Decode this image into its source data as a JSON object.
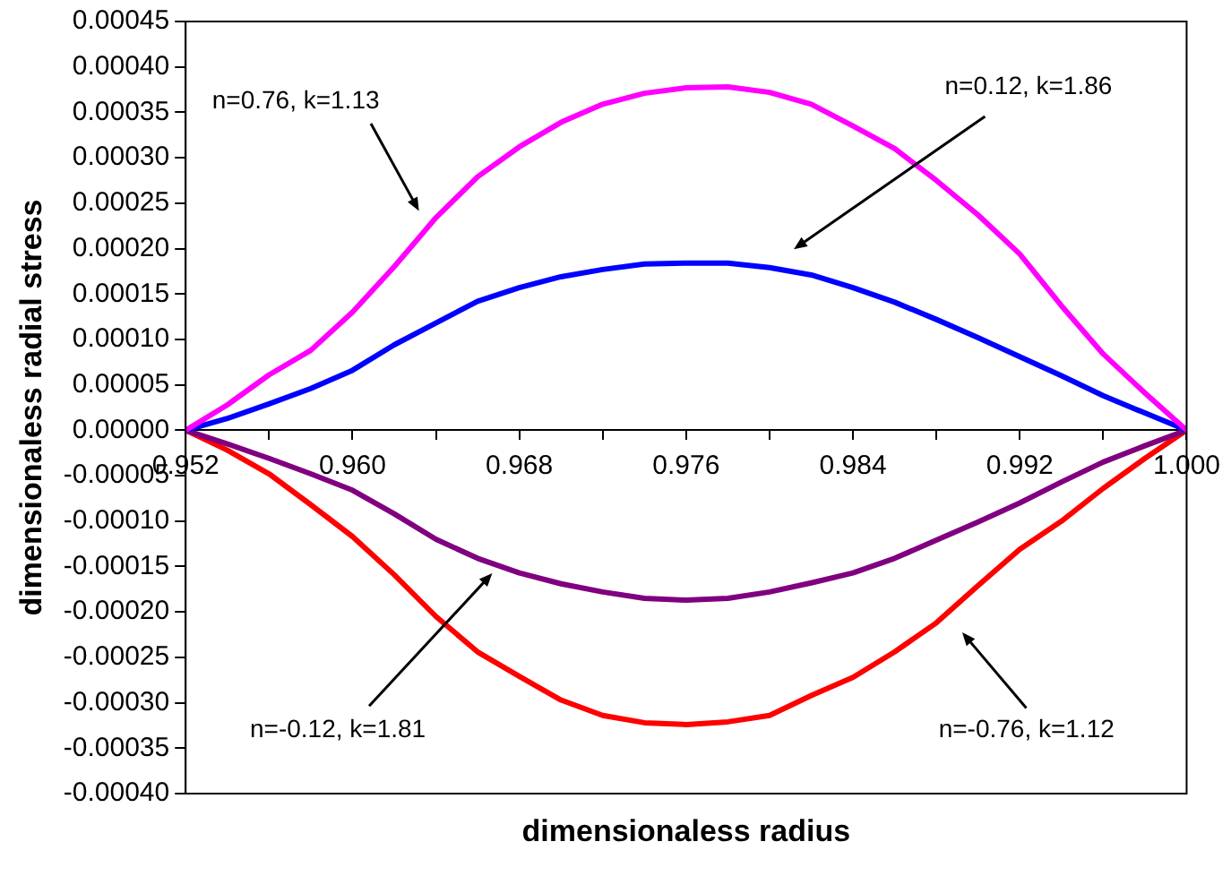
{
  "chart_data": {
    "type": "line",
    "xlabel": "dimensionaless radius",
    "ylabel": "dimensionaless radial stress",
    "x": [
      0.952,
      0.954,
      0.956,
      0.958,
      0.96,
      0.962,
      0.964,
      0.966,
      0.968,
      0.97,
      0.972,
      0.974,
      0.976,
      0.978,
      0.98,
      0.982,
      0.984,
      0.986,
      0.988,
      0.99,
      0.992,
      0.994,
      0.996,
      0.998,
      1.0
    ],
    "series": [
      {
        "color": "#ff00ff",
        "values": [
          0,
          2.8e-05,
          6.1e-05,
          8.8e-05,
          0.00013,
          0.00018,
          0.000234,
          0.000279,
          0.000312,
          0.000339,
          0.000359,
          0.000371,
          0.000377,
          0.000378,
          0.000372,
          0.000359,
          0.000335,
          0.00031,
          0.000275,
          0.000237,
          0.000194,
          0.000137,
          8.4e-05,
          4.1e-05,
          0
        ]
      },
      {
        "color": "#0000ff",
        "values": [
          0,
          1.3e-05,
          2.9e-05,
          4.6e-05,
          6.6e-05,
          9.4e-05,
          0.000118,
          0.000142,
          0.000157,
          0.000169,
          0.000177,
          0.000183,
          0.000184,
          0.000184,
          0.000179,
          0.000171,
          0.000157,
          0.000141,
          0.000122,
          0.000102,
          8.1e-05,
          6e-05,
          3.8e-05,
          1.9e-05,
          0
        ]
      },
      {
        "color": "#800080",
        "values": [
          0,
          -1.5e-05,
          -3.1e-05,
          -4.8e-05,
          -6.6e-05,
          -9.2e-05,
          -0.00012,
          -0.000141,
          -0.000157,
          -0.000169,
          -0.000178,
          -0.000185,
          -0.000187,
          -0.000185,
          -0.000178,
          -0.000168,
          -0.000157,
          -0.000141,
          -0.000121,
          -0.000101,
          -8e-05,
          -5.7e-05,
          -3.5e-05,
          -1.7e-05,
          0
        ]
      },
      {
        "color": "#ff0000",
        "values": [
          0,
          -2.2e-05,
          -4.8e-05,
          -8.2e-05,
          -0.000117,
          -0.000159,
          -0.000205,
          -0.000244,
          -0.000271,
          -0.000297,
          -0.000314,
          -0.000322,
          -0.000324,
          -0.000321,
          -0.000314,
          -0.000292,
          -0.000272,
          -0.000244,
          -0.000212,
          -0.000171,
          -0.000131,
          -0.0001,
          -6.4e-05,
          -3.1e-05,
          0
        ]
      }
    ],
    "xlim": [
      0.952,
      1.0
    ],
    "xticks": [
      0.952,
      {
        "value": 0.956,
        "label": null
      },
      "0.960",
      {
        "value": 0.964,
        "label": null
      },
      0.968,
      {
        "value": 0.972,
        "label": null
      },
      0.976,
      {
        "value": 0.98,
        "label": null
      },
      0.984,
      {
        "value": 0.988,
        "label": null
      },
      0.992,
      {
        "value": 0.996,
        "label": null
      },
      {
        "value": 1.0,
        "label": "1.000"
      }
    ],
    "ylim": [
      -0.0004,
      0.00045
    ],
    "yticks": [
      {
        "value": 0.00045,
        "label": "0.00045"
      },
      {
        "value": 0.0004,
        "label": "0.00040"
      },
      {
        "value": 0.00035,
        "label": "0.00035"
      },
      {
        "value": 0.0003,
        "label": "0.00030"
      },
      {
        "value": 0.00025,
        "label": "0.00025"
      },
      {
        "value": 0.0002,
        "label": "0.00020"
      },
      {
        "value": 0.00015,
        "label": "0.00015"
      },
      {
        "value": 0.0001,
        "label": "0.00010"
      },
      {
        "value": 5e-05,
        "label": "0.00005"
      },
      {
        "value": 0,
        "label": "0.00000"
      },
      {
        "value": -5e-05,
        "label": "-0.00005"
      },
      {
        "value": -0.0001,
        "label": "-0.00010"
      },
      {
        "value": -0.00015,
        "label": "-0.00015"
      },
      {
        "value": -0.0002,
        "label": "-0.00020"
      },
      {
        "value": -0.00025,
        "label": "-0.00025"
      },
      {
        "value": -0.0003,
        "label": "-0.00030"
      },
      {
        "value": -0.00035,
        "label": "-0.00035"
      },
      {
        "value": -0.0004,
        "label": "-0.00040"
      }
    ],
    "annotations": [
      "n=0.76, k=1.13",
      "n=0.12, k=1.86",
      "n=-0.12, k=1.81",
      "n=-0.76, k=1.12"
    ],
    "grid": false,
    "legend": false,
    "marker": "none",
    "line_style": "solid"
  }
}
